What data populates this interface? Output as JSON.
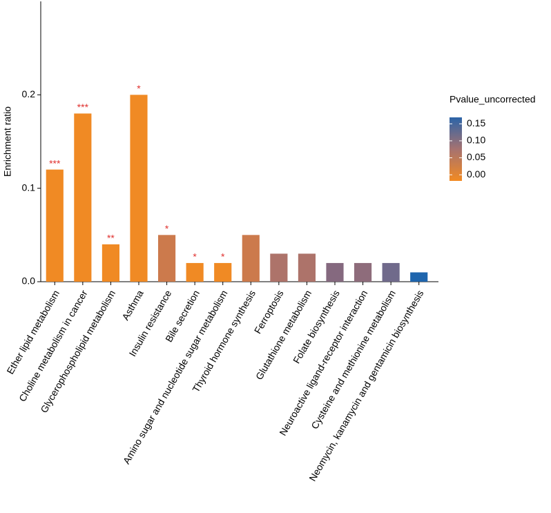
{
  "chart_data": {
    "type": "bar",
    "y_label": "Enrichment ratio",
    "categories": [
      "Ether lipid metabolism",
      "Choline metabolism in cancer",
      "Glycerophospholipid metabolism",
      "Asthma",
      "Insulin resistance",
      "Bile secretion",
      "Amino sugar and nucleotide sugar metabolism",
      "Thyroid hormone synthesis",
      "Ferroptosis",
      "Glutathione metabolism",
      "Folate biosynthesis",
      "Neuroactive ligand-receptor interaction",
      "Cysteine and methionine metabolism",
      "Neomycin, kanamycin and gentamicin biosynthesis"
    ],
    "values": [
      0.12,
      0.18,
      0.04,
      0.2,
      0.05,
      0.02,
      0.02,
      0.05,
      0.03,
      0.03,
      0.02,
      0.02,
      0.02,
      0.01
    ],
    "colors": [
      "#f08a24",
      "#f08a24",
      "#f08a24",
      "#f08a24",
      "#cc7a4c",
      "#f08a24",
      "#f08a24",
      "#cc7a4c",
      "#ad736a",
      "#ad736a",
      "#85697f",
      "#8e6c7b",
      "#706a8b",
      "#1f65ad"
    ],
    "annotations": [
      "***",
      "***",
      "**",
      "*",
      "*",
      "*",
      "*",
      null,
      null,
      null,
      null,
      null,
      null,
      null
    ],
    "annotation_color": "#e0312f",
    "ylim": [
      0,
      0.3
    ],
    "yticks": [
      {
        "value": 0,
        "label": "0.0"
      },
      0.1,
      0.2
    ],
    "colorbar": {
      "title": "Pvalue_uncorrected",
      "lim": [
        -0.018,
        0.169
      ],
      "ticks": [
        {
          "value": 0,
          "label": "0.00"
        },
        0.05,
        {
          "value": 0.1,
          "label": "0.10"
        },
        0.15
      ],
      "colors": [
        "#f28a22",
        "#a67270",
        "#2c64a8"
      ]
    }
  }
}
